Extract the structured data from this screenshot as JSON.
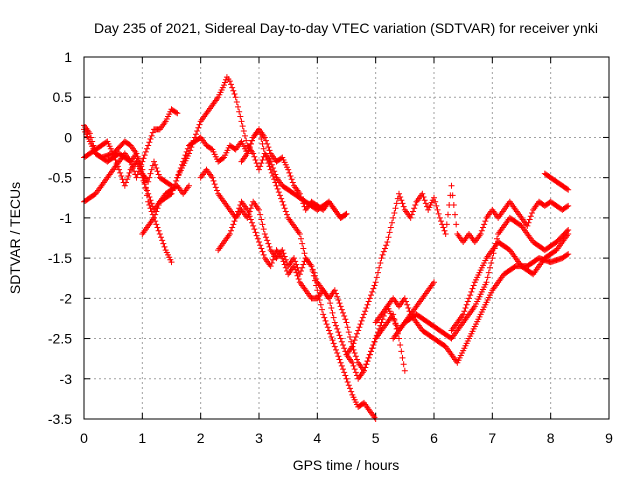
{
  "chart_data": {
    "type": "scatter",
    "title": "Day 235 of 2021, Sidereal Day-to-day VTEC variation (SDTVAR) for receiver ynki",
    "xlabel": "GPS time / hours",
    "ylabel": "SDTVAR / TECUs",
    "xlim": [
      0,
      9
    ],
    "ylim": [
      -3.5,
      1
    ],
    "xticks": [
      0,
      1,
      2,
      3,
      4,
      5,
      6,
      7,
      8,
      9
    ],
    "yticks": [
      -3.5,
      -3,
      -2.5,
      -2,
      -1.5,
      -1,
      -0.5,
      0,
      0.5,
      1
    ],
    "ytick_labels": [
      "-3.5",
      "-3",
      "-2.5",
      "-2",
      "-1.5",
      "-1",
      "-0.5",
      "0",
      "0.5",
      "1"
    ],
    "grid": true,
    "marker": "+",
    "color": "#ff0000",
    "series": [
      {
        "x": [
          0.0,
          0.2,
          0.4,
          0.6,
          0.8,
          0.9,
          1.0,
          1.1,
          1.2,
          1.3,
          1.4,
          1.5,
          1.6
        ],
        "y": [
          0.1,
          -0.2,
          -0.3,
          -0.2,
          -0.3,
          -0.5,
          -0.3,
          -0.1,
          0.1,
          0.1,
          0.2,
          0.35,
          0.3
        ]
      },
      {
        "x": [
          0.0,
          0.2,
          0.4,
          0.6,
          0.7,
          0.8,
          0.9,
          1.0,
          1.1,
          1.2,
          1.3,
          1.4,
          1.5
        ],
        "y": [
          -0.8,
          -0.7,
          -0.5,
          -0.3,
          -0.2,
          -0.3,
          -0.2,
          -0.4,
          -0.8,
          -1.0,
          -1.2,
          -1.4,
          -1.55
        ]
      },
      {
        "x": [
          0.0,
          0.1,
          0.2,
          0.3,
          0.5,
          0.7,
          0.8,
          0.9,
          1.0,
          1.1,
          1.2,
          1.4,
          1.6,
          1.7,
          1.8
        ],
        "y": [
          0.15,
          0.05,
          -0.2,
          -0.25,
          -0.2,
          -0.05,
          -0.1,
          -0.2,
          -0.5,
          -0.7,
          -0.9,
          -0.7,
          -0.6,
          -0.7,
          -0.6
        ]
      },
      {
        "x": [
          0.0,
          0.2,
          0.4,
          0.5,
          0.6,
          0.7,
          0.8,
          0.9,
          1.0,
          1.1,
          1.2,
          1.3,
          1.5
        ],
        "y": [
          -0.25,
          -0.15,
          -0.05,
          -0.2,
          -0.4,
          -0.6,
          -0.4,
          -0.3,
          -0.45,
          -0.55,
          -0.3,
          -0.5,
          -0.6
        ]
      },
      {
        "x": [
          1.0,
          1.1,
          1.2,
          1.3,
          1.5,
          1.6,
          1.8,
          1.9,
          2.0,
          2.1,
          2.2,
          2.3,
          2.4,
          2.45,
          2.5,
          2.6,
          2.7,
          2.8,
          2.9,
          3.0,
          3.1,
          3.2,
          3.3,
          3.4,
          3.6,
          3.8,
          4.0,
          4.2,
          4.3,
          4.4,
          4.5
        ],
        "y": [
          -1.2,
          -1.1,
          -1.0,
          -0.8,
          -0.7,
          -0.5,
          -0.2,
          0.0,
          0.2,
          0.3,
          0.4,
          0.5,
          0.65,
          0.75,
          0.7,
          0.5,
          0.2,
          -0.1,
          -0.2,
          -0.4,
          -0.2,
          -0.3,
          -0.5,
          -0.6,
          -0.7,
          -0.8,
          -0.9,
          -0.8,
          -0.9,
          -1.0,
          -0.95
        ]
      },
      {
        "x": [
          1.6,
          1.7,
          1.8,
          1.9,
          2.0,
          2.1,
          2.2,
          2.3,
          2.4,
          2.5,
          2.6,
          2.7,
          2.8,
          2.9,
          3.0,
          3.1,
          3.2,
          3.3,
          3.5,
          3.7,
          3.8,
          3.9,
          4.0,
          4.1,
          4.2,
          4.3,
          4.4,
          4.5,
          4.6,
          4.7,
          4.8,
          4.9,
          5.0
        ],
        "y": [
          -0.5,
          -0.3,
          -0.1,
          -0.05,
          0.0,
          -0.1,
          -0.15,
          -0.3,
          -0.25,
          -0.1,
          -0.15,
          -0.05,
          -0.2,
          0.0,
          0.1,
          -0.2,
          -0.4,
          -0.6,
          -1.0,
          -1.2,
          -1.5,
          -1.6,
          -1.9,
          -2.2,
          -2.4,
          -2.6,
          -2.8,
          -3.0,
          -3.2,
          -3.35,
          -3.3,
          -3.4,
          -3.5
        ]
      },
      {
        "x": [
          2.0,
          2.1,
          2.2,
          2.3,
          2.4,
          2.5,
          2.6,
          2.7,
          2.8,
          2.9,
          3.0,
          3.1,
          3.2,
          3.3,
          3.4,
          3.5,
          3.6,
          3.7,
          3.8,
          3.9,
          4.0,
          4.1,
          4.2,
          4.3,
          4.4,
          4.5,
          4.6,
          4.7,
          4.8,
          4.9,
          5.0,
          5.1,
          5.2,
          5.3,
          5.4,
          5.5,
          5.6,
          5.7,
          5.8,
          5.9,
          6.0
        ],
        "y": [
          -0.5,
          -0.4,
          -0.5,
          -0.7,
          -0.8,
          -0.9,
          -1.0,
          -0.9,
          -1.0,
          -0.8,
          -0.9,
          -1.2,
          -1.4,
          -1.5,
          -1.4,
          -1.6,
          -1.5,
          -1.7,
          -1.5,
          -1.6,
          -1.8,
          -1.9,
          -2.0,
          -1.9,
          -2.1,
          -2.3,
          -2.6,
          -2.8,
          -2.9,
          -2.7,
          -2.5,
          -2.3,
          -2.1,
          -2.0,
          -2.1,
          -2.0,
          -2.2,
          -2.1,
          -2.0,
          -1.9,
          -1.8
        ]
      },
      {
        "x": [
          2.3,
          2.4,
          2.5,
          2.6,
          2.7,
          2.8,
          2.9,
          3.0,
          3.1,
          3.2,
          3.3,
          3.4,
          3.5,
          3.6,
          3.7,
          3.8,
          3.9,
          4.0,
          4.1,
          4.2,
          4.3,
          4.4,
          4.5,
          4.6,
          4.7,
          4.8,
          4.9,
          5.0,
          5.1,
          5.2,
          5.3,
          5.4,
          5.5
        ],
        "y": [
          -1.4,
          -1.3,
          -1.2,
          -1.0,
          -0.8,
          -0.9,
          -1.1,
          -1.3,
          -1.5,
          -1.6,
          -1.4,
          -1.5,
          -1.7,
          -1.6,
          -1.8,
          -1.9,
          -2.0,
          -2.0,
          -1.9,
          -2.0,
          -2.3,
          -2.5,
          -2.7,
          -2.8,
          -3.0,
          -2.9,
          -2.7,
          -2.5,
          -2.4,
          -2.3,
          -2.2,
          -2.5,
          -2.9
        ]
      },
      {
        "x": [
          2.7,
          2.8,
          2.9,
          3.0,
          3.1,
          3.2,
          3.3,
          3.4,
          3.5,
          3.6,
          3.7,
          3.8,
          3.9,
          4.0,
          4.1,
          4.2,
          4.3,
          4.4,
          4.5
        ],
        "y": [
          -0.3,
          -0.2,
          0.0,
          0.1,
          0.0,
          -0.2,
          -0.3,
          -0.25,
          -0.4,
          -0.6,
          -0.7,
          -0.9,
          -0.8,
          -0.85,
          -0.9,
          -0.8,
          -0.9,
          -1.0,
          -0.95
        ]
      },
      {
        "x": [
          4.5,
          4.6,
          4.7,
          4.8,
          4.9,
          5.0,
          5.1,
          5.2,
          5.3,
          5.4,
          5.5,
          5.6,
          5.7,
          5.8,
          5.9,
          6.0,
          6.1,
          6.2,
          6.3,
          6.4,
          6.5,
          6.6,
          6.7,
          6.8,
          6.9,
          7.0,
          7.1,
          7.2,
          7.3,
          7.4,
          7.5,
          7.6,
          7.7,
          7.8,
          7.9,
          8.0,
          8.1,
          8.2,
          8.3
        ],
        "y": [
          -2.7,
          -2.6,
          -2.4,
          -2.2,
          -2.0,
          -1.8,
          -1.5,
          -1.3,
          -1.0,
          -0.7,
          -0.9,
          -1.0,
          -0.8,
          -0.7,
          -0.9,
          -0.75,
          -1.0,
          -1.2,
          -0.6,
          -1.2,
          -1.3,
          -1.2,
          -1.3,
          -1.2,
          -1.0,
          -0.9,
          -1.0,
          -0.9,
          -0.8,
          -0.9,
          -1.0,
          -1.1,
          -0.9,
          -0.8,
          -0.85,
          -0.8,
          -0.85,
          -0.9,
          -0.85
        ]
      },
      {
        "x": [
          5.0,
          5.2,
          5.4,
          5.6,
          5.8,
          6.0,
          6.2,
          6.4,
          6.6,
          6.8,
          7.0,
          7.2,
          7.4,
          7.6,
          7.8,
          8.0,
          8.2,
          8.3
        ],
        "y": [
          -2.3,
          -2.1,
          -2.4,
          -2.2,
          -2.4,
          -2.5,
          -2.6,
          -2.8,
          -2.5,
          -2.2,
          -1.9,
          -1.7,
          -1.6,
          -1.6,
          -1.5,
          -1.55,
          -1.5,
          -1.45
        ]
      },
      {
        "x": [
          5.3,
          5.5,
          5.7,
          5.9,
          6.1,
          6.3,
          6.5,
          6.7,
          6.9,
          7.0,
          7.1,
          7.3,
          7.5,
          7.7,
          7.9,
          8.1,
          8.3
        ],
        "y": [
          -2.5,
          -2.3,
          -2.2,
          -2.3,
          -2.4,
          -2.5,
          -2.3,
          -2.1,
          -1.8,
          -1.5,
          -1.2,
          -1.0,
          -1.1,
          -1.3,
          -1.4,
          -1.3,
          -1.15
        ]
      },
      {
        "x": [
          6.3,
          6.5,
          6.7,
          6.9,
          7.1,
          7.3,
          7.5,
          7.7,
          7.9,
          8.1,
          8.3
        ],
        "y": [
          -2.4,
          -2.2,
          -1.8,
          -1.5,
          -1.3,
          -1.4,
          -1.6,
          -1.7,
          -1.5,
          -1.4,
          -1.2
        ]
      },
      {
        "x": [
          7.9,
          8.0,
          8.1,
          8.2,
          8.3
        ],
        "y": [
          -0.45,
          -0.5,
          -0.55,
          -0.6,
          -0.65
        ]
      }
    ]
  }
}
